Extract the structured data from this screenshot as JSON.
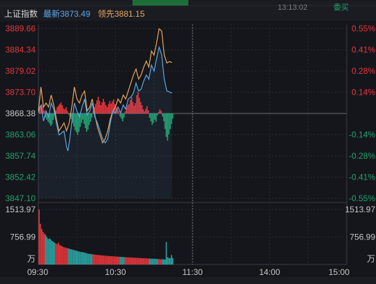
{
  "header": {
    "index_name": "上证指数",
    "latest_label": "最新",
    "latest_value": "3873.49",
    "leading_label": "领先",
    "leading_value": "3881.15",
    "clock_partial": "13:13:02",
    "right_partial": "委买"
  },
  "colors": {
    "up": "#e8363b",
    "down": "#1fa36b",
    "price_line": "#5aa8e8",
    "leading_line": "#e8a85a",
    "grid": "#2a2c33",
    "axis_text": "#c8c8c8"
  },
  "chart_data": {
    "type": "line",
    "price_axis": {
      "ylim": [
        3847.1,
        3889.66
      ],
      "base": 3868.38,
      "left_ticks": [
        "3889.66",
        "3884.34",
        "3879.02",
        "3873.70",
        "3868.38",
        "3863.06",
        "3857.74",
        "3852.42",
        "3847.10"
      ],
      "right_ticks": [
        "0.55%",
        "0.41%",
        "0.28%",
        "0.14%",
        "",
        "-0.14%",
        "-0.28%",
        "-0.41%",
        "-0.55%"
      ]
    },
    "volume_axis": {
      "ylim": [
        0,
        1513.97
      ],
      "left_ticks": [
        "1513.97",
        "756.99",
        "万"
      ],
      "right_ticks": [
        "1513.97",
        "756.99",
        "万"
      ]
    },
    "time_axis": {
      "ticks": [
        "09:30",
        "10:30",
        "11:30",
        "14:00",
        "15:00"
      ],
      "total_minutes": 240,
      "elapsed_minutes": 105
    },
    "series": [
      {
        "key": "price",
        "points": [
          [
            0,
            3868.6
          ],
          [
            2,
            3870.5
          ],
          [
            4,
            3866.5
          ],
          [
            6,
            3869
          ],
          [
            8,
            3867.5
          ],
          [
            10,
            3871
          ],
          [
            12,
            3869.5
          ],
          [
            14,
            3866
          ],
          [
            16,
            3863
          ],
          [
            18,
            3863.5
          ],
          [
            20,
            3864
          ],
          [
            22,
            3860
          ],
          [
            23,
            3859
          ],
          [
            24,
            3861
          ],
          [
            26,
            3866
          ],
          [
            28,
            3871
          ],
          [
            30,
            3869
          ],
          [
            32,
            3867.5
          ],
          [
            34,
            3870
          ],
          [
            36,
            3872
          ],
          [
            38,
            3868
          ],
          [
            40,
            3869
          ],
          [
            42,
            3871
          ],
          [
            44,
            3867.5
          ],
          [
            46,
            3866
          ],
          [
            48,
            3864
          ],
          [
            50,
            3862
          ],
          [
            52,
            3861
          ],
          [
            54,
            3862
          ],
          [
            56,
            3866
          ],
          [
            58,
            3869
          ],
          [
            60,
            3868.5
          ],
          [
            62,
            3870
          ],
          [
            64,
            3868.5
          ],
          [
            66,
            3870.5
          ],
          [
            68,
            3869.5
          ],
          [
            70,
            3872
          ],
          [
            72,
            3872.5
          ],
          [
            74,
            3873.5
          ],
          [
            76,
            3876
          ],
          [
            78,
            3874
          ],
          [
            80,
            3874.5
          ],
          [
            82,
            3876.5
          ],
          [
            84,
            3878
          ],
          [
            86,
            3877
          ],
          [
            88,
            3880.5
          ],
          [
            90,
            3879
          ],
          [
            92,
            3882
          ],
          [
            94,
            3885
          ],
          [
            96,
            3883
          ],
          [
            97,
            3880
          ],
          [
            98,
            3877
          ],
          [
            100,
            3874
          ],
          [
            102,
            3873.8
          ],
          [
            104,
            3873.49
          ]
        ]
      },
      {
        "key": "leading",
        "points": [
          [
            0,
            3869
          ],
          [
            2,
            3875
          ],
          [
            4,
            3870
          ],
          [
            6,
            3871
          ],
          [
            8,
            3870
          ],
          [
            10,
            3873
          ],
          [
            12,
            3870.5
          ],
          [
            14,
            3867
          ],
          [
            16,
            3864
          ],
          [
            18,
            3865
          ],
          [
            20,
            3866
          ],
          [
            22,
            3864
          ],
          [
            24,
            3866
          ],
          [
            26,
            3870
          ],
          [
            28,
            3875
          ],
          [
            30,
            3872
          ],
          [
            32,
            3871
          ],
          [
            34,
            3873
          ],
          [
            36,
            3874
          ],
          [
            38,
            3869
          ],
          [
            40,
            3870
          ],
          [
            42,
            3872
          ],
          [
            44,
            3868
          ],
          [
            46,
            3865
          ],
          [
            48,
            3863
          ],
          [
            50,
            3861
          ],
          [
            52,
            3862
          ],
          [
            54,
            3864
          ],
          [
            56,
            3867
          ],
          [
            58,
            3869
          ],
          [
            60,
            3870
          ],
          [
            62,
            3872
          ],
          [
            64,
            3871
          ],
          [
            66,
            3873
          ],
          [
            68,
            3872
          ],
          [
            70,
            3874
          ],
          [
            72,
            3876
          ],
          [
            74,
            3878
          ],
          [
            76,
            3879.5
          ],
          [
            78,
            3877
          ],
          [
            80,
            3878
          ],
          [
            82,
            3880
          ],
          [
            84,
            3881.5
          ],
          [
            86,
            3880
          ],
          [
            88,
            3884
          ],
          [
            90,
            3883
          ],
          [
            92,
            3886
          ],
          [
            94,
            3889.6
          ],
          [
            96,
            3889
          ],
          [
            97,
            3886
          ],
          [
            98,
            3883
          ],
          [
            100,
            3881
          ],
          [
            102,
            3881.4
          ],
          [
            104,
            3881.15
          ]
        ]
      }
    ],
    "diff_bars": [
      1.5,
      1.2,
      1.8,
      1.4,
      0.6,
      -0.8,
      -1.2,
      -1.6,
      -1.9,
      -2.4,
      -2.1,
      -1.2,
      -0.4,
      0.6,
      1.2,
      1.5,
      1.8,
      2.1,
      1.6,
      1.0,
      0.8,
      1.2,
      0.5,
      -0.2,
      -0.6,
      -1.1,
      -1.8,
      -2.5,
      -3.2,
      -3.6,
      -4.1,
      -3.5,
      -2.6,
      -1.8,
      -1.2,
      -2.0,
      -2.8,
      -3.5,
      -3.1,
      -2.2,
      -1.6,
      -0.8,
      0.5,
      1.2,
      1.8,
      2.5,
      3.2,
      2.4,
      1.6,
      2.1,
      2.8,
      2.2,
      1.6,
      1.2,
      1.8,
      2.4,
      1.9,
      2.3,
      2.7,
      1.8,
      1.2,
      0.8,
      0.5,
      -0.6,
      -1.0,
      -1.5,
      -0.8,
      0.4,
      1.2,
      1.6,
      1.8,
      2.6,
      3.1,
      2.2,
      1.5,
      2.0,
      3.5,
      4.1,
      3.0,
      2.2,
      1.6,
      0.8,
      0.4,
      0.9,
      1.4,
      0.6,
      -0.8,
      -1.5,
      -2.2,
      -1.8,
      -1.2,
      -1.6,
      -0.4,
      0.3,
      0.8,
      0.5,
      -0.6,
      -1.5,
      -3.0,
      -4.5,
      -5.2,
      -4.0,
      -3.0,
      -2.0,
      -1.0
    ],
    "volume_bars": [
      1513.97,
      1120,
      980,
      900,
      850,
      820,
      760,
      700,
      720,
      690,
      650,
      630,
      600,
      580,
      560,
      600,
      540,
      520,
      500,
      480,
      470,
      460,
      450,
      440,
      430,
      420,
      410,
      400,
      390,
      380,
      370,
      360,
      350,
      340,
      345,
      330,
      320,
      310,
      300,
      295,
      290,
      285,
      280,
      275,
      270,
      265,
      262,
      258,
      255,
      250,
      248,
      245,
      240,
      238,
      235,
      232,
      230,
      228,
      225,
      222,
      220,
      218,
      215,
      213,
      210,
      208,
      205,
      203,
      200,
      198,
      196,
      194,
      192,
      190,
      188,
      186,
      184,
      182,
      180,
      178,
      176,
      174,
      172,
      170,
      168,
      166,
      164,
      162,
      160,
      158,
      156,
      154,
      152,
      150,
      148,
      146,
      144,
      142,
      140,
      620,
      200,
      180,
      175,
      260,
      180
    ]
  }
}
